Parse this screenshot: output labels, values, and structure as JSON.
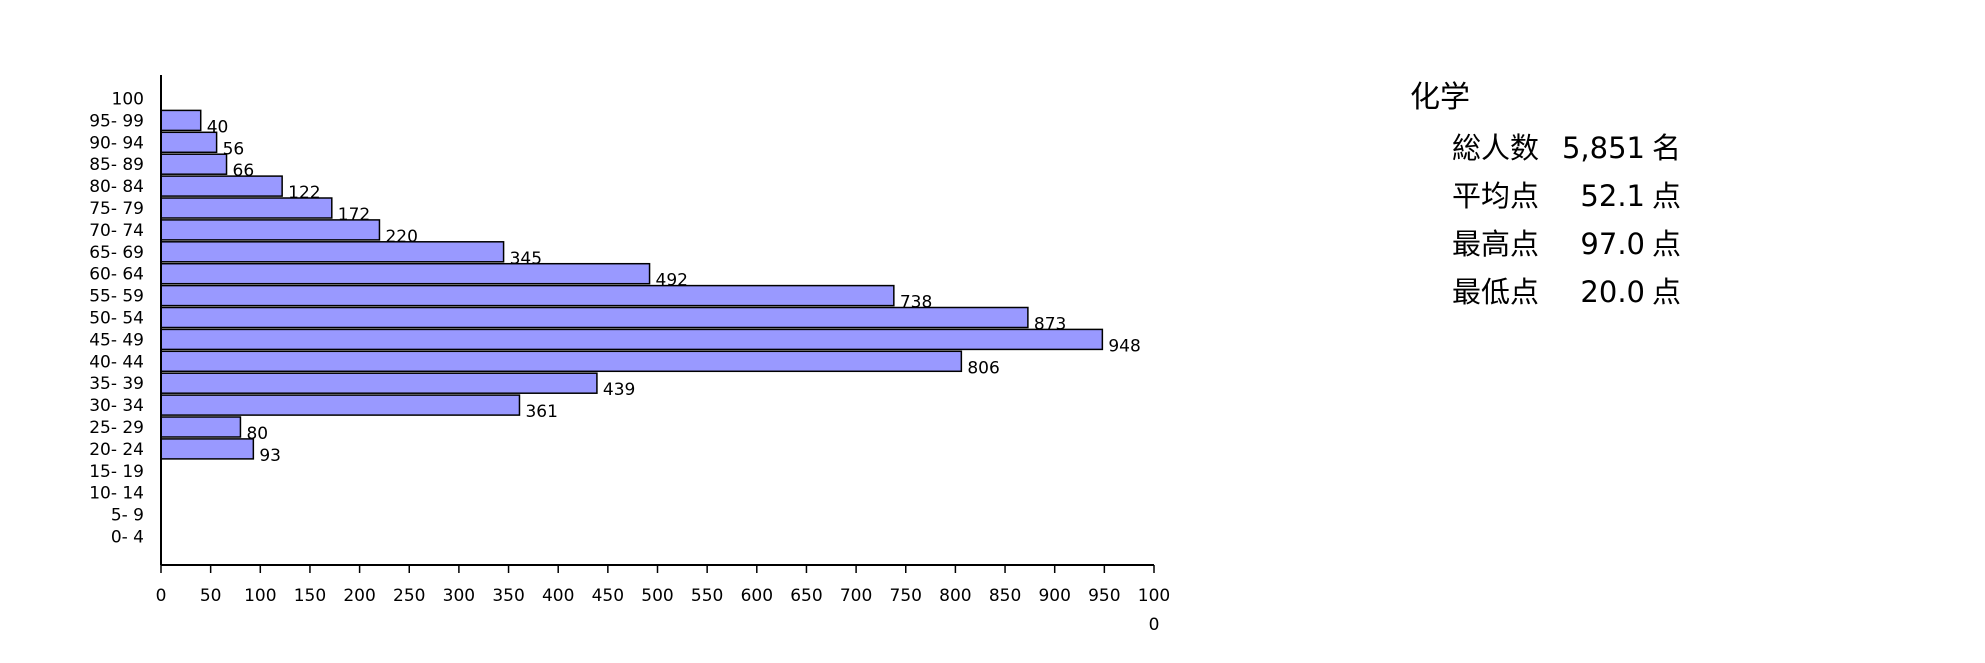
{
  "chart_data": {
    "type": "bar",
    "orientation": "horizontal",
    "categories": [
      "100",
      "95- 99",
      "90- 94",
      "85- 89",
      "80- 84",
      "75- 79",
      "70- 74",
      "65- 69",
      "60- 64",
      "55- 59",
      "50- 54",
      "45- 49",
      "40- 44",
      "35- 39",
      "30- 34",
      "25- 29",
      "20- 24",
      "15- 19",
      "10- 14",
      "5- 9",
      "0- 4"
    ],
    "values": [
      null,
      40,
      56,
      66,
      122,
      172,
      220,
      345,
      492,
      738,
      873,
      948,
      806,
      439,
      361,
      80,
      93,
      null,
      null,
      null,
      null
    ],
    "value_labels": [
      "",
      "40",
      "56",
      "66",
      "122",
      "172",
      "220",
      "345",
      "492",
      "738",
      "873",
      "948",
      "806",
      "439",
      "361",
      "80",
      "93",
      "",
      "",
      "",
      ""
    ],
    "x_ticks": [
      "0",
      "50",
      "100",
      "150",
      "200",
      "250",
      "300",
      "350",
      "400",
      "450",
      "500",
      "550",
      "600",
      "650",
      "700",
      "750",
      "800",
      "850",
      "900",
      "950",
      "100"
    ],
    "x_overflow_label": "0",
    "xlim": [
      0,
      1000
    ],
    "bar_color": "#9999ff",
    "bar_edge_color": "#000000",
    "grid": false,
    "title": "",
    "xlabel": "",
    "ylabel": ""
  },
  "stats": {
    "subject": "化学",
    "rows": [
      {
        "label": "総人数",
        "value": "5,851",
        "unit": "名"
      },
      {
        "label": "平均点",
        "value": "52.1",
        "unit": "点"
      },
      {
        "label": "最高点",
        "value": "97.0",
        "unit": "点"
      },
      {
        "label": "最低点",
        "value": "20.0",
        "unit": "点"
      }
    ]
  }
}
